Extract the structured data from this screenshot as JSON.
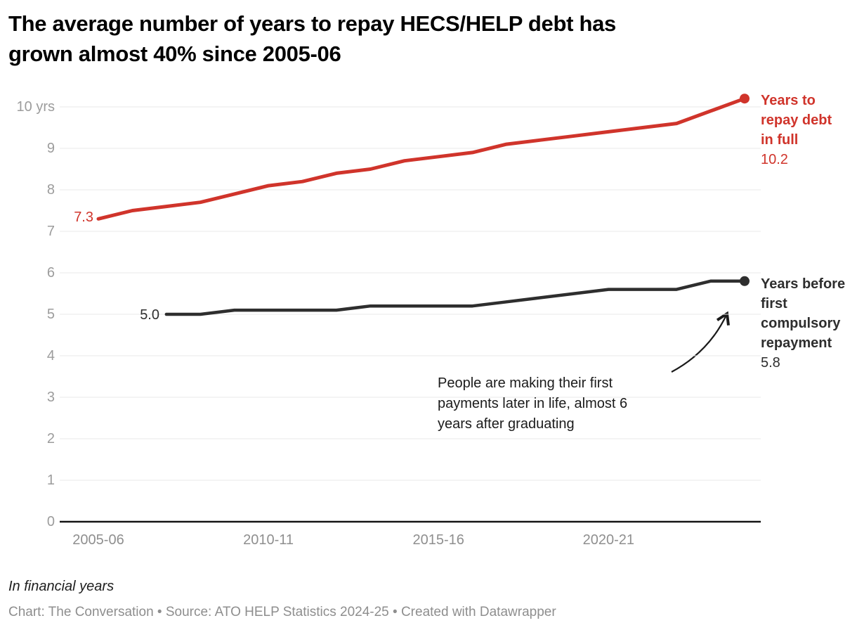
{
  "title_lines": [
    "The average number of years to repay HECS/HELP debt has",
    "grown almost 40% since 2005-06"
  ],
  "colors": {
    "red": "#d0342b",
    "dark": "#2e2e2e",
    "grid": "#e8e8e8",
    "baseline": "#141414",
    "axis_text": "#9c9c9c"
  },
  "chart_data": {
    "type": "line",
    "x_unit": "financial years",
    "categories": [
      "2005-06",
      "2006-07",
      "2007-08",
      "2008-09",
      "2009-10",
      "2010-11",
      "2011-12",
      "2012-13",
      "2013-14",
      "2014-15",
      "2015-16",
      "2016-17",
      "2017-18",
      "2018-19",
      "2019-20",
      "2020-21",
      "2021-22",
      "2022-23",
      "2023-24",
      "2024-25"
    ],
    "series": [
      {
        "name": "Years to repay debt in full",
        "color": "#d0342b",
        "start_category_index": 0,
        "values": [
          7.3,
          7.5,
          7.6,
          7.7,
          7.9,
          8.1,
          8.2,
          8.4,
          8.5,
          8.7,
          8.8,
          8.9,
          9.1,
          9.2,
          9.3,
          9.4,
          9.5,
          9.6,
          9.9,
          10.2
        ],
        "start_label": "7.3",
        "end_label": "10.2"
      },
      {
        "name": "Years before first compulsory repayment",
        "color": "#2e2e2e",
        "start_category_index": 2,
        "values": [
          5.0,
          5.0,
          5.1,
          5.1,
          5.1,
          5.1,
          5.2,
          5.2,
          5.2,
          5.2,
          5.3,
          5.4,
          5.5,
          5.6,
          5.6,
          5.6,
          5.8,
          5.8
        ],
        "start_label": "5.0",
        "end_label": "5.8"
      }
    ],
    "ylim": [
      0,
      10
    ],
    "grid": true,
    "y_ticks": [
      {
        "value": 0,
        "label": "0"
      },
      {
        "value": 1,
        "label": "1"
      },
      {
        "value": 2,
        "label": "2"
      },
      {
        "value": 3,
        "label": "3"
      },
      {
        "value": 4,
        "label": "4"
      },
      {
        "value": 5,
        "label": "5"
      },
      {
        "value": 6,
        "label": "6"
      },
      {
        "value": 7,
        "label": "7"
      },
      {
        "value": 8,
        "label": "8"
      },
      {
        "value": 9,
        "label": "9"
      },
      {
        "value": 10,
        "label": "10 yrs"
      }
    ],
    "x_ticks": [
      {
        "category_index": 0,
        "label": "2005-06"
      },
      {
        "category_index": 5,
        "label": "2010-11"
      },
      {
        "category_index": 10,
        "label": "2015-16"
      },
      {
        "category_index": 15,
        "label": "2020-21"
      }
    ],
    "annotation_lines": [
      "People are making their first",
      "payments later in life, almost 6",
      "years after graduating"
    ]
  },
  "footer": {
    "note": "In financial years",
    "byline": "Chart: The Conversation • Source: ATO HELP Statistics 2024-25 • Created with Datawrapper"
  }
}
